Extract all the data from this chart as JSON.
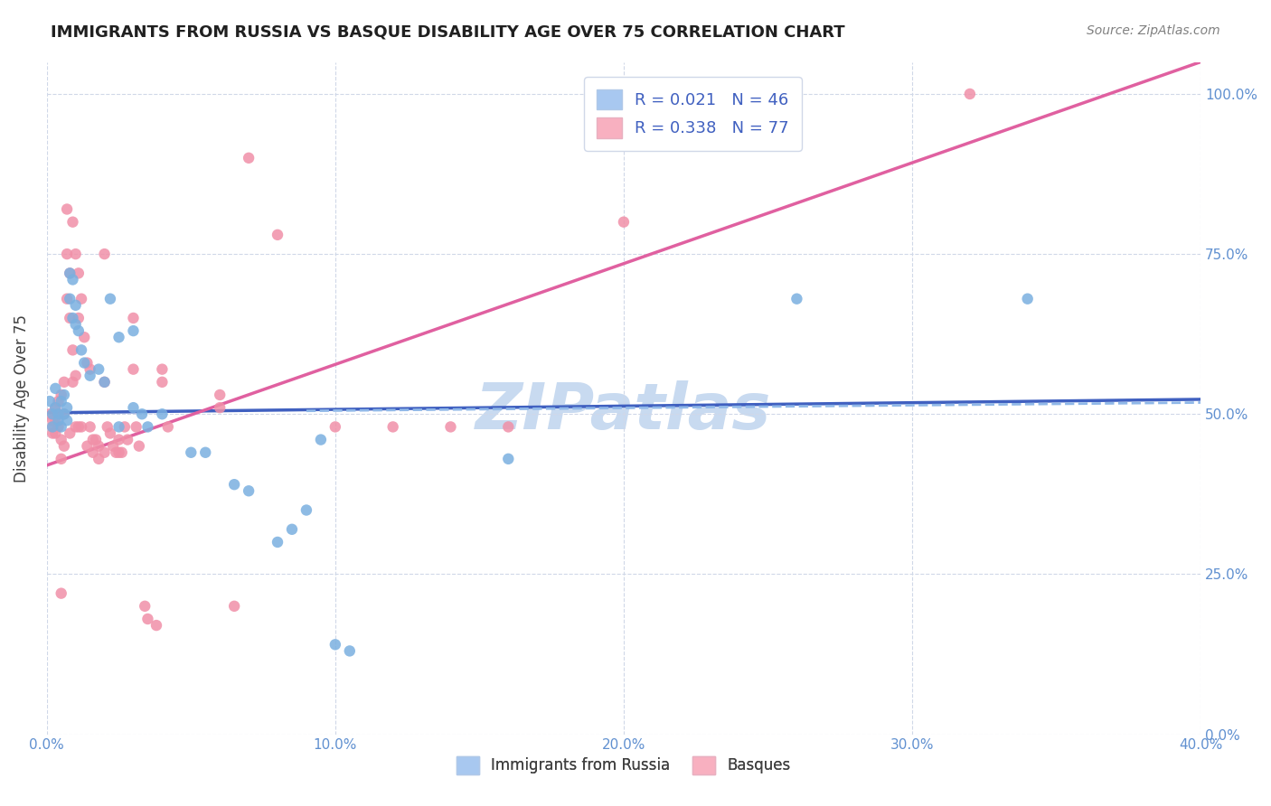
{
  "title": "IMMIGRANTS FROM RUSSIA VS BASQUE DISABILITY AGE OVER 75 CORRELATION CHART",
  "source": "Source: ZipAtlas.com",
  "ylabel": "Disability Age Over 75",
  "xmin": 0.0,
  "xmax": 0.4,
  "ymin": 0.0,
  "ymax": 1.05,
  "legend_entries": [
    {
      "label": "R = 0.021   N = 46",
      "color": "#a8c8f0"
    },
    {
      "label": "R = 0.338   N = 77",
      "color": "#f8b0c0"
    }
  ],
  "legend_bottom": [
    "Immigrants from Russia",
    "Basques"
  ],
  "blue_scatter_color": "#7ab0e0",
  "pink_scatter_color": "#f090a8",
  "blue_line_color": "#4060c0",
  "pink_line_color": "#e060a0",
  "blue_dashed_color": "#90b8e8",
  "watermark_color": "#c8daf0",
  "grid_color": "#d0d8e8",
  "blue_points": [
    [
      0.001,
      0.52
    ],
    [
      0.002,
      0.5
    ],
    [
      0.002,
      0.48
    ],
    [
      0.003,
      0.54
    ],
    [
      0.003,
      0.51
    ],
    [
      0.004,
      0.5
    ],
    [
      0.004,
      0.49
    ],
    [
      0.005,
      0.52
    ],
    [
      0.005,
      0.48
    ],
    [
      0.006,
      0.53
    ],
    [
      0.006,
      0.5
    ],
    [
      0.007,
      0.51
    ],
    [
      0.007,
      0.49
    ],
    [
      0.008,
      0.72
    ],
    [
      0.008,
      0.68
    ],
    [
      0.009,
      0.71
    ],
    [
      0.009,
      0.65
    ],
    [
      0.01,
      0.67
    ],
    [
      0.01,
      0.64
    ],
    [
      0.011,
      0.63
    ],
    [
      0.012,
      0.6
    ],
    [
      0.013,
      0.58
    ],
    [
      0.015,
      0.56
    ],
    [
      0.018,
      0.57
    ],
    [
      0.02,
      0.55
    ],
    [
      0.022,
      0.68
    ],
    [
      0.025,
      0.62
    ],
    [
      0.025,
      0.48
    ],
    [
      0.03,
      0.63
    ],
    [
      0.03,
      0.51
    ],
    [
      0.033,
      0.5
    ],
    [
      0.035,
      0.48
    ],
    [
      0.04,
      0.5
    ],
    [
      0.05,
      0.44
    ],
    [
      0.055,
      0.44
    ],
    [
      0.065,
      0.39
    ],
    [
      0.07,
      0.38
    ],
    [
      0.08,
      0.3
    ],
    [
      0.085,
      0.32
    ],
    [
      0.09,
      0.35
    ],
    [
      0.095,
      0.46
    ],
    [
      0.1,
      0.14
    ],
    [
      0.105,
      0.13
    ],
    [
      0.16,
      0.43
    ],
    [
      0.26,
      0.68
    ],
    [
      0.34,
      0.68
    ]
  ],
  "pink_points": [
    [
      0.001,
      0.5
    ],
    [
      0.002,
      0.49
    ],
    [
      0.002,
      0.48
    ],
    [
      0.002,
      0.47
    ],
    [
      0.003,
      0.51
    ],
    [
      0.003,
      0.49
    ],
    [
      0.003,
      0.47
    ],
    [
      0.004,
      0.52
    ],
    [
      0.004,
      0.5
    ],
    [
      0.004,
      0.48
    ],
    [
      0.005,
      0.53
    ],
    [
      0.005,
      0.46
    ],
    [
      0.005,
      0.43
    ],
    [
      0.005,
      0.22
    ],
    [
      0.006,
      0.55
    ],
    [
      0.006,
      0.5
    ],
    [
      0.006,
      0.45
    ],
    [
      0.007,
      0.82
    ],
    [
      0.007,
      0.75
    ],
    [
      0.007,
      0.68
    ],
    [
      0.008,
      0.72
    ],
    [
      0.008,
      0.65
    ],
    [
      0.008,
      0.47
    ],
    [
      0.009,
      0.8
    ],
    [
      0.009,
      0.6
    ],
    [
      0.009,
      0.55
    ],
    [
      0.01,
      0.75
    ],
    [
      0.01,
      0.56
    ],
    [
      0.01,
      0.48
    ],
    [
      0.011,
      0.72
    ],
    [
      0.011,
      0.65
    ],
    [
      0.011,
      0.48
    ],
    [
      0.012,
      0.68
    ],
    [
      0.012,
      0.48
    ],
    [
      0.013,
      0.62
    ],
    [
      0.014,
      0.58
    ],
    [
      0.014,
      0.45
    ],
    [
      0.015,
      0.57
    ],
    [
      0.015,
      0.48
    ],
    [
      0.016,
      0.46
    ],
    [
      0.016,
      0.44
    ],
    [
      0.017,
      0.46
    ],
    [
      0.018,
      0.45
    ],
    [
      0.018,
      0.43
    ],
    [
      0.02,
      0.75
    ],
    [
      0.02,
      0.55
    ],
    [
      0.02,
      0.44
    ],
    [
      0.021,
      0.48
    ],
    [
      0.022,
      0.47
    ],
    [
      0.023,
      0.45
    ],
    [
      0.024,
      0.44
    ],
    [
      0.025,
      0.46
    ],
    [
      0.025,
      0.44
    ],
    [
      0.026,
      0.44
    ],
    [
      0.027,
      0.48
    ],
    [
      0.028,
      0.46
    ],
    [
      0.03,
      0.65
    ],
    [
      0.03,
      0.57
    ],
    [
      0.031,
      0.48
    ],
    [
      0.032,
      0.45
    ],
    [
      0.034,
      0.2
    ],
    [
      0.035,
      0.18
    ],
    [
      0.038,
      0.17
    ],
    [
      0.04,
      0.57
    ],
    [
      0.04,
      0.55
    ],
    [
      0.042,
      0.48
    ],
    [
      0.06,
      0.53
    ],
    [
      0.06,
      0.51
    ],
    [
      0.065,
      0.2
    ],
    [
      0.07,
      0.9
    ],
    [
      0.08,
      0.78
    ],
    [
      0.1,
      0.48
    ],
    [
      0.12,
      0.48
    ],
    [
      0.14,
      0.48
    ],
    [
      0.16,
      0.48
    ],
    [
      0.2,
      0.8
    ],
    [
      0.32,
      1.0
    ]
  ],
  "blue_line": {
    "x0": 0.0,
    "y0": 0.502,
    "x1": 0.4,
    "y1": 0.523
  },
  "pink_line": {
    "x0": 0.0,
    "y0": 0.42,
    "x1": 0.4,
    "y1": 1.05
  },
  "blue_dashed_line": {
    "x0": 0.09,
    "y0": 0.505,
    "x1": 0.4,
    "y1": 0.518
  }
}
